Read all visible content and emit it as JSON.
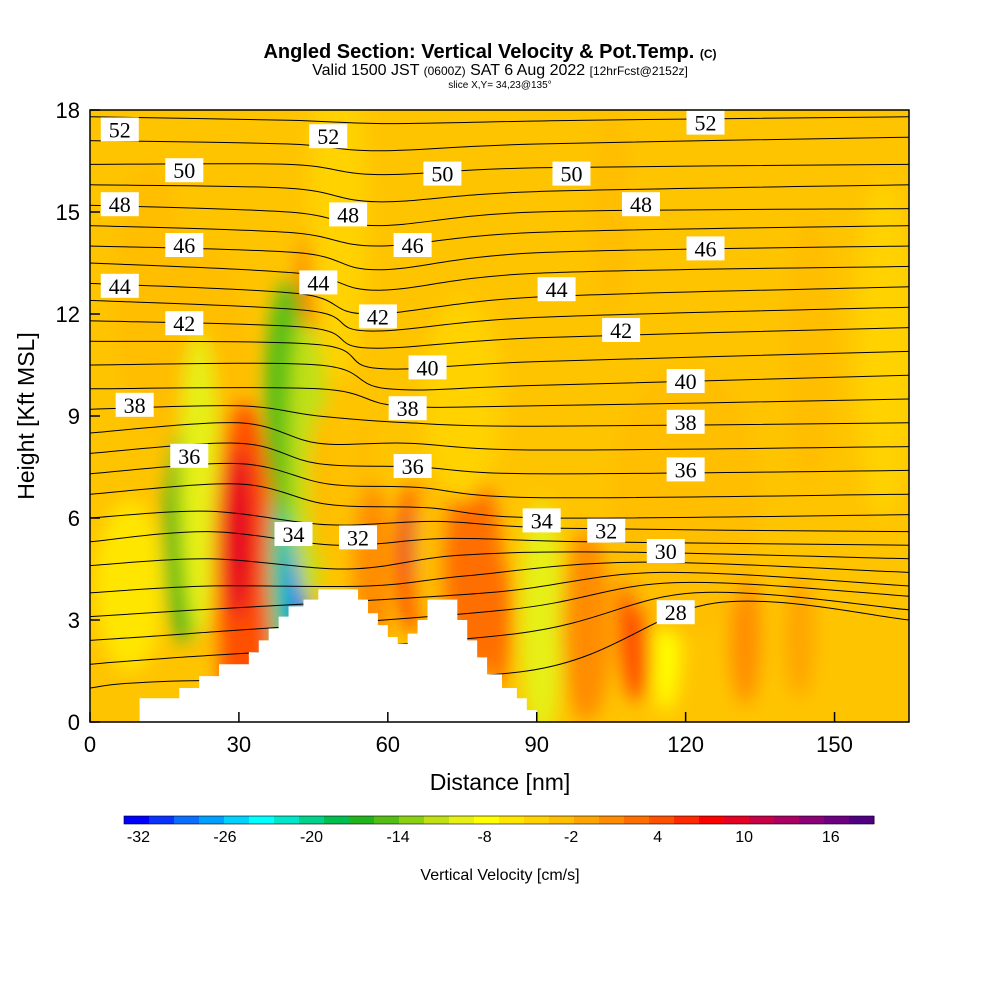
{
  "title": {
    "main": "Angled Section: Vertical Velocity & Pot.Temp.",
    "main_units": "(C)",
    "valid_prefix": "Valid 1500 JST",
    "valid_utc": "(0600Z)",
    "valid_date": "SAT 6 Aug 2022",
    "valid_fcst": "[12hrFcst@2152z]",
    "slice": "slice X,Y= 34,23@135°"
  },
  "chart_data": {
    "type": "heatmap",
    "title": "Angled Section: Vertical Velocity & Pot.Temp.",
    "xlabel": "Distance [nm]",
    "ylabel": "Height [Kft MSL]",
    "xlim": [
      0,
      165
    ],
    "ylim": [
      0,
      18
    ],
    "x_ticks": [
      0,
      30,
      60,
      90,
      120,
      150
    ],
    "x_tick_labels": [
      "0",
      "30",
      "60",
      "90",
      "120",
      "150"
    ],
    "y_ticks": [
      0,
      3,
      6,
      9,
      12,
      15,
      18
    ],
    "y_tick_labels": [
      "0",
      "3",
      "6",
      "9",
      "12",
      "15",
      "18"
    ],
    "colorbar": {
      "label": "Vertical Velocity [cm/s]",
      "min": -33,
      "max": 19,
      "step": 2,
      "tick_values": [
        -32,
        -26,
        -20,
        -14,
        -8,
        -2,
        4,
        10,
        16
      ],
      "tick_labels": [
        "-32",
        "-26",
        "-20",
        "-14",
        "-8",
        "-2",
        "4",
        "10",
        "16"
      ],
      "colors": [
        "#0000ff",
        "#0a32ff",
        "#0a6eff",
        "#00a0ff",
        "#00d2ff",
        "#00ffff",
        "#00e6c8",
        "#00d28c",
        "#00be50",
        "#22b41e",
        "#55be14",
        "#8cd014",
        "#c0e014",
        "#e6f014",
        "#ffff00",
        "#ffe600",
        "#ffd200",
        "#ffbe00",
        "#ffa500",
        "#ff8c00",
        "#ff6e00",
        "#ff5000",
        "#ff2800",
        "#ff0000",
        "#e60023",
        "#c80046",
        "#aa0064",
        "#8c0078",
        "#6e0082",
        "#500082"
      ]
    },
    "terrain_profile": [
      [
        10,
        0.7
      ],
      [
        12,
        0.7
      ],
      [
        16,
        0.7
      ],
      [
        18,
        1.0
      ],
      [
        22,
        1.35
      ],
      [
        26,
        1.7
      ],
      [
        30,
        1.7
      ],
      [
        32,
        2.05
      ],
      [
        34,
        2.4
      ],
      [
        36,
        2.75
      ],
      [
        38,
        3.1
      ],
      [
        40,
        3.4
      ],
      [
        43,
        3.6
      ],
      [
        46,
        3.9
      ],
      [
        52,
        3.9
      ],
      [
        54,
        3.6
      ],
      [
        56,
        3.2
      ],
      [
        58,
        2.85
      ],
      [
        60,
        2.5
      ],
      [
        62,
        2.3
      ],
      [
        64,
        2.6
      ],
      [
        66,
        3.0
      ],
      [
        68,
        3.6
      ],
      [
        72,
        3.6
      ],
      [
        74,
        3.0
      ],
      [
        76,
        2.4
      ],
      [
        78,
        1.9
      ],
      [
        80,
        1.4
      ],
      [
        83,
        1.0
      ],
      [
        86,
        0.7
      ],
      [
        88,
        0.35
      ],
      [
        90,
        0.1
      ]
    ],
    "wind_cells": [
      {
        "x": 12,
        "y": 12.5,
        "rx": 7,
        "ry": 4,
        "w": 2
      },
      {
        "x": 24,
        "y": 8.0,
        "rx": 9,
        "ry": 6,
        "w": 1
      },
      {
        "x": 19,
        "y": 5.5,
        "rx": 4,
        "ry": 3.2,
        "w": -14
      },
      {
        "x": 23,
        "y": 8.0,
        "rx": 3,
        "ry": 2.5,
        "w": -10
      },
      {
        "x": 22,
        "y": 7.0,
        "rx": 4,
        "ry": 4.5,
        "w": -6
      },
      {
        "x": 31,
        "y": 4.5,
        "rx": 6,
        "ry": 5,
        "w": 10
      },
      {
        "x": 30,
        "y": 5.5,
        "rx": 3,
        "ry": 2.5,
        "w": 16
      },
      {
        "x": 40,
        "y": 4.5,
        "rx": 4,
        "ry": 3.2,
        "w": -18
      },
      {
        "x": 42,
        "y": 4.2,
        "rx": 2.5,
        "ry": 1.5,
        "w": -28
      },
      {
        "x": 40,
        "y": 9.5,
        "rx": 5,
        "ry": 3.5,
        "w": -12
      },
      {
        "x": 44,
        "y": 8.0,
        "rx": 4,
        "ry": 4.5,
        "w": -9
      },
      {
        "x": 45,
        "y": 13.0,
        "rx": 3,
        "ry": 1.5,
        "w": 8
      },
      {
        "x": 47,
        "y": 7.0,
        "rx": 3,
        "ry": 2.2,
        "w": 2
      },
      {
        "x": 55,
        "y": 6.0,
        "rx": 3,
        "ry": 3,
        "w": 2
      },
      {
        "x": 57,
        "y": 4.5,
        "rx": 4,
        "ry": 2.5,
        "w": 6
      },
      {
        "x": 65,
        "y": 4.8,
        "rx": 3,
        "ry": 2.2,
        "w": 12
      },
      {
        "x": 65,
        "y": 5.2,
        "rx": 1.5,
        "ry": 1,
        "w": 17
      },
      {
        "x": 70,
        "y": 5.0,
        "rx": 5,
        "ry": 3,
        "w": 1
      },
      {
        "x": 77,
        "y": 4.5,
        "rx": 6,
        "ry": 3,
        "w": 7
      },
      {
        "x": 82,
        "y": 3.0,
        "rx": 3,
        "ry": 2,
        "w": 8
      },
      {
        "x": 91,
        "y": 2.8,
        "rx": 3,
        "ry": 2.2,
        "w": -11
      },
      {
        "x": 91,
        "y": 3.0,
        "rx": 4.5,
        "ry": 3.5,
        "w": -6
      },
      {
        "x": 100,
        "y": 2.8,
        "rx": 5,
        "ry": 2.8,
        "w": 6
      },
      {
        "x": 110,
        "y": 3.0,
        "rx": 3.5,
        "ry": 2.4,
        "w": 10
      },
      {
        "x": 116,
        "y": 2.5,
        "rx": 3,
        "ry": 2.2,
        "w": -4
      },
      {
        "x": 132,
        "y": 2.5,
        "rx": 3,
        "ry": 2,
        "w": 6
      },
      {
        "x": 143,
        "y": 2.5,
        "rx": 3,
        "ry": 1.8,
        "w": 4
      },
      {
        "x": 120,
        "y": 6.5,
        "rx": 15,
        "ry": 4,
        "w": 2
      },
      {
        "x": 145,
        "y": 11.0,
        "rx": 5,
        "ry": 4,
        "w": 2
      },
      {
        "x": 105,
        "y": 15.0,
        "rx": 4,
        "ry": 3,
        "w": 2
      },
      {
        "x": 160,
        "y": 11.0,
        "rx": 6,
        "ry": 5,
        "w": -1
      },
      {
        "x": 75,
        "y": 9.5,
        "rx": 8,
        "ry": 3,
        "w": -1
      },
      {
        "x": 8,
        "y": 4.0,
        "rx": 7,
        "ry": 2.5,
        "w": -2
      },
      {
        "x": 50,
        "y": 15.0,
        "rx": 6,
        "ry": 5,
        "w": -1
      }
    ],
    "isentropes": [
      {
        "pts": [
          [
            0,
            17.8
          ],
          [
            40,
            17.7
          ],
          [
            60,
            17.6
          ],
          [
            100,
            17.7
          ],
          [
            165,
            17.8
          ]
        ]
      },
      {
        "pts": [
          [
            0,
            17.1
          ],
          [
            40,
            17.0
          ],
          [
            58,
            16.8
          ],
          [
            90,
            17.0
          ],
          [
            165,
            17.2
          ]
        ],
        "label": "52"
      },
      {
        "pts": [
          [
            0,
            16.4
          ],
          [
            40,
            16.4
          ],
          [
            58,
            16.1
          ],
          [
            90,
            16.3
          ],
          [
            165,
            16.4
          ]
        ]
      },
      {
        "pts": [
          [
            0,
            15.8
          ],
          [
            40,
            15.7
          ],
          [
            58,
            15.3
          ],
          [
            90,
            15.6
          ],
          [
            165,
            15.8
          ]
        ],
        "label": "50"
      },
      {
        "pts": [
          [
            0,
            15.2
          ],
          [
            40,
            15.0
          ],
          [
            58,
            14.6
          ],
          [
            90,
            15.0
          ],
          [
            165,
            15.1
          ]
        ]
      },
      {
        "pts": [
          [
            0,
            14.6
          ],
          [
            40,
            14.4
          ],
          [
            58,
            14.0
          ],
          [
            90,
            14.4
          ],
          [
            165,
            14.6
          ]
        ],
        "label": "48"
      },
      {
        "pts": [
          [
            0,
            14.0
          ],
          [
            42,
            13.8
          ],
          [
            58,
            13.3
          ],
          [
            90,
            13.8
          ],
          [
            165,
            14.0
          ]
        ]
      },
      {
        "pts": [
          [
            0,
            13.5
          ],
          [
            42,
            13.2
          ],
          [
            58,
            12.7
          ],
          [
            90,
            13.2
          ],
          [
            165,
            13.4
          ]
        ],
        "label": "46"
      },
      {
        "pts": [
          [
            0,
            12.9
          ],
          [
            42,
            12.6
          ],
          [
            56,
            12.0
          ],
          [
            90,
            12.5
          ],
          [
            165,
            12.8
          ]
        ]
      },
      {
        "pts": [
          [
            0,
            12.4
          ],
          [
            44,
            12.1
          ],
          [
            56,
            11.5
          ],
          [
            90,
            11.9
          ],
          [
            165,
            12.2
          ]
        ],
        "label": "44"
      },
      {
        "pts": [
          [
            0,
            11.8
          ],
          [
            44,
            11.6
          ],
          [
            56,
            11.0
          ],
          [
            90,
            11.3
          ],
          [
            165,
            11.6
          ]
        ]
      },
      {
        "pts": [
          [
            0,
            11.2
          ],
          [
            46,
            11.1
          ],
          [
            58,
            10.4
          ],
          [
            90,
            10.6
          ],
          [
            165,
            10.9
          ]
        ],
        "label": "42"
      },
      {
        "pts": [
          [
            0,
            10.5
          ],
          [
            46,
            10.5
          ],
          [
            60,
            9.8
          ],
          [
            90,
            9.9
          ],
          [
            165,
            10.2
          ]
        ]
      },
      {
        "pts": [
          [
            0,
            9.8
          ],
          [
            46,
            9.8
          ],
          [
            62,
            9.3
          ],
          [
            90,
            9.3
          ],
          [
            165,
            9.5
          ]
        ],
        "label": "40"
      },
      {
        "pts": [
          [
            0,
            9.2
          ],
          [
            30,
            9.3
          ],
          [
            46,
            9.0
          ],
          [
            64,
            8.8
          ],
          [
            90,
            8.7
          ],
          [
            165,
            8.8
          ]
        ]
      },
      {
        "pts": [
          [
            0,
            8.5
          ],
          [
            30,
            8.8
          ],
          [
            46,
            8.2
          ],
          [
            64,
            8.2
          ],
          [
            90,
            8.0
          ],
          [
            165,
            8.1
          ]
        ],
        "label": "38"
      },
      {
        "pts": [
          [
            0,
            7.9
          ],
          [
            30,
            8.2
          ],
          [
            46,
            7.6
          ],
          [
            66,
            7.5
          ],
          [
            90,
            7.3
          ],
          [
            165,
            7.4
          ]
        ]
      },
      {
        "pts": [
          [
            0,
            7.3
          ],
          [
            30,
            7.6
          ],
          [
            48,
            7.0
          ],
          [
            66,
            6.9
          ],
          [
            90,
            6.6
          ],
          [
            165,
            6.7
          ]
        ],
        "label": "36"
      },
      {
        "pts": [
          [
            0,
            6.7
          ],
          [
            30,
            7.0
          ],
          [
            48,
            6.4
          ],
          [
            68,
            6.3
          ],
          [
            92,
            6.0
          ],
          [
            165,
            6.1
          ]
        ]
      },
      {
        "pts": [
          [
            0,
            6.0
          ],
          [
            24,
            6.2
          ],
          [
            48,
            5.8
          ],
          [
            70,
            5.9
          ],
          [
            95,
            5.7
          ],
          [
            165,
            5.6
          ]
        ]
      },
      {
        "pts": [
          [
            0,
            5.3
          ],
          [
            24,
            5.6
          ],
          [
            50,
            5.2
          ],
          [
            72,
            5.4
          ],
          [
            100,
            5.3
          ],
          [
            165,
            5.2
          ]
        ],
        "label": "34"
      },
      {
        "pts": [
          [
            0,
            4.6
          ],
          [
            24,
            4.8
          ],
          [
            52,
            4.5
          ],
          [
            74,
            4.9
          ],
          [
            105,
            5.0
          ],
          [
            165,
            4.8
          ]
        ]
      },
      {
        "pts": [
          [
            0,
            3.8
          ],
          [
            24,
            4.0
          ],
          [
            56,
            4.0
          ],
          [
            76,
            4.3
          ],
          [
            110,
            4.7
          ],
          [
            165,
            4.4
          ]
        ],
        "label": "32"
      },
      {
        "pts": [
          [
            0,
            3.1
          ],
          [
            22,
            3.3
          ],
          [
            80,
            3.8
          ],
          [
            115,
            4.4
          ],
          [
            165,
            4.0
          ]
        ]
      },
      {
        "pts": [
          [
            0,
            2.4
          ],
          [
            20,
            2.6
          ],
          [
            84,
            3.3
          ],
          [
            118,
            4.1
          ],
          [
            165,
            3.7
          ]
        ],
        "label": "30"
      },
      {
        "pts": [
          [
            0,
            1.7
          ],
          [
            18,
            1.9
          ],
          [
            86,
            2.6
          ],
          [
            122,
            3.8
          ],
          [
            165,
            3.3
          ]
        ]
      },
      {
        "pts": [
          [
            0,
            1.0
          ],
          [
            16,
            1.2
          ],
          [
            88,
            1.5
          ],
          [
            126,
            3.5
          ],
          [
            165,
            3.0
          ]
        ],
        "label": "28"
      }
    ],
    "contour_labels": [
      {
        "text": "52",
        "x": 6,
        "y": 17.4
      },
      {
        "text": "52",
        "x": 48,
        "y": 17.2
      },
      {
        "text": "52",
        "x": 124,
        "y": 17.6
      },
      {
        "text": "50",
        "x": 19,
        "y": 16.2
      },
      {
        "text": "50",
        "x": 71,
        "y": 16.1
      },
      {
        "text": "50",
        "x": 97,
        "y": 16.1
      },
      {
        "text": "48",
        "x": 6,
        "y": 15.2
      },
      {
        "text": "48",
        "x": 52,
        "y": 14.9
      },
      {
        "text": "48",
        "x": 111,
        "y": 15.2
      },
      {
        "text": "46",
        "x": 19,
        "y": 14.0
      },
      {
        "text": "46",
        "x": 65,
        "y": 14.0
      },
      {
        "text": "46",
        "x": 124,
        "y": 13.9
      },
      {
        "text": "44",
        "x": 6,
        "y": 12.8
      },
      {
        "text": "44",
        "x": 46,
        "y": 12.9
      },
      {
        "text": "44",
        "x": 94,
        "y": 12.7
      },
      {
        "text": "42",
        "x": 19,
        "y": 11.7
      },
      {
        "text": "42",
        "x": 58,
        "y": 11.9
      },
      {
        "text": "42",
        "x": 107,
        "y": 11.5
      },
      {
        "text": "40",
        "x": 68,
        "y": 10.4
      },
      {
        "text": "40",
        "x": 120,
        "y": 10.0
      },
      {
        "text": "38",
        "x": 9,
        "y": 9.3
      },
      {
        "text": "38",
        "x": 64,
        "y": 9.2
      },
      {
        "text": "38",
        "x": 120,
        "y": 8.8
      },
      {
        "text": "36",
        "x": 20,
        "y": 7.8
      },
      {
        "text": "36",
        "x": 65,
        "y": 7.5
      },
      {
        "text": "36",
        "x": 120,
        "y": 7.4
      },
      {
        "text": "34",
        "x": 41,
        "y": 5.5
      },
      {
        "text": "34",
        "x": 91,
        "y": 5.9
      },
      {
        "text": "32",
        "x": 54,
        "y": 5.4
      },
      {
        "text": "32",
        "x": 104,
        "y": 5.6
      },
      {
        "text": "30",
        "x": 116,
        "y": 5.0
      },
      {
        "text": "28",
        "x": 118,
        "y": 3.2
      }
    ]
  }
}
